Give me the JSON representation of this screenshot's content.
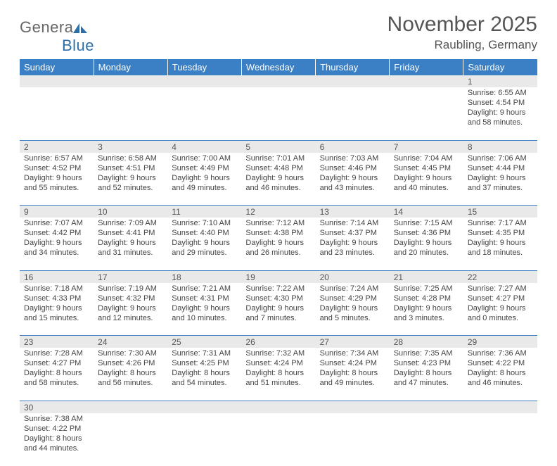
{
  "logo": {
    "text1": "Genera",
    "text2": "Blue"
  },
  "title": "November 2025",
  "location": "Raubling, Germany",
  "colors": {
    "header_bg": "#3b7fc4",
    "header_text": "#ffffff",
    "daynum_bg": "#e9e9e9",
    "rule": "#3b7fc4",
    "body_text": "#444444"
  },
  "weekdays": [
    "Sunday",
    "Monday",
    "Tuesday",
    "Wednesday",
    "Thursday",
    "Friday",
    "Saturday"
  ],
  "weeks": [
    [
      null,
      null,
      null,
      null,
      null,
      null,
      {
        "d": "1",
        "sr": "Sunrise: 6:55 AM",
        "ss": "Sunset: 4:54 PM",
        "dl1": "Daylight: 9 hours",
        "dl2": "and 58 minutes."
      }
    ],
    [
      {
        "d": "2",
        "sr": "Sunrise: 6:57 AM",
        "ss": "Sunset: 4:52 PM",
        "dl1": "Daylight: 9 hours",
        "dl2": "and 55 minutes."
      },
      {
        "d": "3",
        "sr": "Sunrise: 6:58 AM",
        "ss": "Sunset: 4:51 PM",
        "dl1": "Daylight: 9 hours",
        "dl2": "and 52 minutes."
      },
      {
        "d": "4",
        "sr": "Sunrise: 7:00 AM",
        "ss": "Sunset: 4:49 PM",
        "dl1": "Daylight: 9 hours",
        "dl2": "and 49 minutes."
      },
      {
        "d": "5",
        "sr": "Sunrise: 7:01 AM",
        "ss": "Sunset: 4:48 PM",
        "dl1": "Daylight: 9 hours",
        "dl2": "and 46 minutes."
      },
      {
        "d": "6",
        "sr": "Sunrise: 7:03 AM",
        "ss": "Sunset: 4:46 PM",
        "dl1": "Daylight: 9 hours",
        "dl2": "and 43 minutes."
      },
      {
        "d": "7",
        "sr": "Sunrise: 7:04 AM",
        "ss": "Sunset: 4:45 PM",
        "dl1": "Daylight: 9 hours",
        "dl2": "and 40 minutes."
      },
      {
        "d": "8",
        "sr": "Sunrise: 7:06 AM",
        "ss": "Sunset: 4:44 PM",
        "dl1": "Daylight: 9 hours",
        "dl2": "and 37 minutes."
      }
    ],
    [
      {
        "d": "9",
        "sr": "Sunrise: 7:07 AM",
        "ss": "Sunset: 4:42 PM",
        "dl1": "Daylight: 9 hours",
        "dl2": "and 34 minutes."
      },
      {
        "d": "10",
        "sr": "Sunrise: 7:09 AM",
        "ss": "Sunset: 4:41 PM",
        "dl1": "Daylight: 9 hours",
        "dl2": "and 31 minutes."
      },
      {
        "d": "11",
        "sr": "Sunrise: 7:10 AM",
        "ss": "Sunset: 4:40 PM",
        "dl1": "Daylight: 9 hours",
        "dl2": "and 29 minutes."
      },
      {
        "d": "12",
        "sr": "Sunrise: 7:12 AM",
        "ss": "Sunset: 4:38 PM",
        "dl1": "Daylight: 9 hours",
        "dl2": "and 26 minutes."
      },
      {
        "d": "13",
        "sr": "Sunrise: 7:14 AM",
        "ss": "Sunset: 4:37 PM",
        "dl1": "Daylight: 9 hours",
        "dl2": "and 23 minutes."
      },
      {
        "d": "14",
        "sr": "Sunrise: 7:15 AM",
        "ss": "Sunset: 4:36 PM",
        "dl1": "Daylight: 9 hours",
        "dl2": "and 20 minutes."
      },
      {
        "d": "15",
        "sr": "Sunrise: 7:17 AM",
        "ss": "Sunset: 4:35 PM",
        "dl1": "Daylight: 9 hours",
        "dl2": "and 18 minutes."
      }
    ],
    [
      {
        "d": "16",
        "sr": "Sunrise: 7:18 AM",
        "ss": "Sunset: 4:33 PM",
        "dl1": "Daylight: 9 hours",
        "dl2": "and 15 minutes."
      },
      {
        "d": "17",
        "sr": "Sunrise: 7:19 AM",
        "ss": "Sunset: 4:32 PM",
        "dl1": "Daylight: 9 hours",
        "dl2": "and 12 minutes."
      },
      {
        "d": "18",
        "sr": "Sunrise: 7:21 AM",
        "ss": "Sunset: 4:31 PM",
        "dl1": "Daylight: 9 hours",
        "dl2": "and 10 minutes."
      },
      {
        "d": "19",
        "sr": "Sunrise: 7:22 AM",
        "ss": "Sunset: 4:30 PM",
        "dl1": "Daylight: 9 hours",
        "dl2": "and 7 minutes."
      },
      {
        "d": "20",
        "sr": "Sunrise: 7:24 AM",
        "ss": "Sunset: 4:29 PM",
        "dl1": "Daylight: 9 hours",
        "dl2": "and 5 minutes."
      },
      {
        "d": "21",
        "sr": "Sunrise: 7:25 AM",
        "ss": "Sunset: 4:28 PM",
        "dl1": "Daylight: 9 hours",
        "dl2": "and 3 minutes."
      },
      {
        "d": "22",
        "sr": "Sunrise: 7:27 AM",
        "ss": "Sunset: 4:27 PM",
        "dl1": "Daylight: 9 hours",
        "dl2": "and 0 minutes."
      }
    ],
    [
      {
        "d": "23",
        "sr": "Sunrise: 7:28 AM",
        "ss": "Sunset: 4:27 PM",
        "dl1": "Daylight: 8 hours",
        "dl2": "and 58 minutes."
      },
      {
        "d": "24",
        "sr": "Sunrise: 7:30 AM",
        "ss": "Sunset: 4:26 PM",
        "dl1": "Daylight: 8 hours",
        "dl2": "and 56 minutes."
      },
      {
        "d": "25",
        "sr": "Sunrise: 7:31 AM",
        "ss": "Sunset: 4:25 PM",
        "dl1": "Daylight: 8 hours",
        "dl2": "and 54 minutes."
      },
      {
        "d": "26",
        "sr": "Sunrise: 7:32 AM",
        "ss": "Sunset: 4:24 PM",
        "dl1": "Daylight: 8 hours",
        "dl2": "and 51 minutes."
      },
      {
        "d": "27",
        "sr": "Sunrise: 7:34 AM",
        "ss": "Sunset: 4:24 PM",
        "dl1": "Daylight: 8 hours",
        "dl2": "and 49 minutes."
      },
      {
        "d": "28",
        "sr": "Sunrise: 7:35 AM",
        "ss": "Sunset: 4:23 PM",
        "dl1": "Daylight: 8 hours",
        "dl2": "and 47 minutes."
      },
      {
        "d": "29",
        "sr": "Sunrise: 7:36 AM",
        "ss": "Sunset: 4:22 PM",
        "dl1": "Daylight: 8 hours",
        "dl2": "and 46 minutes."
      }
    ],
    [
      {
        "d": "30",
        "sr": "Sunrise: 7:38 AM",
        "ss": "Sunset: 4:22 PM",
        "dl1": "Daylight: 8 hours",
        "dl2": "and 44 minutes."
      },
      null,
      null,
      null,
      null,
      null,
      null
    ]
  ]
}
